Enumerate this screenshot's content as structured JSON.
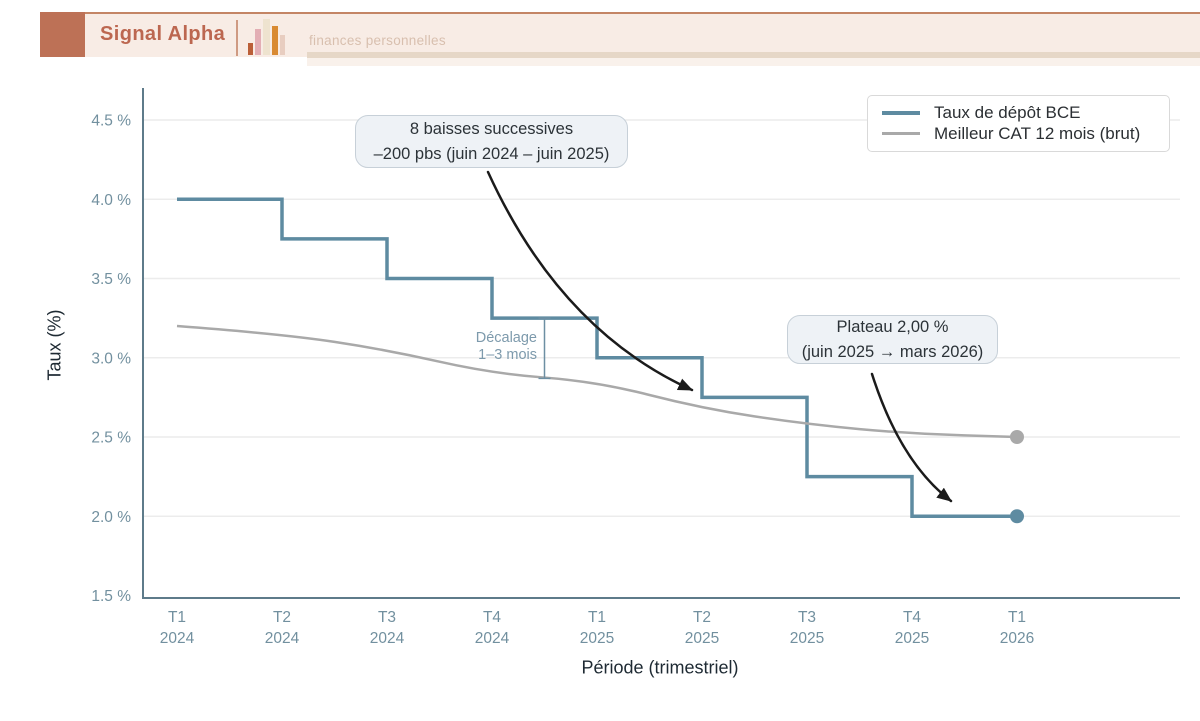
{
  "header": {
    "brand": "Signal Alpha",
    "subtitle": "finances personnelles"
  },
  "colors": {
    "accent_terracotta": "#bc6750",
    "banner_bg": "#f8ece5",
    "line_bce": "#5e8ba1",
    "line_cat": "#a9a9a9",
    "gridline": "#ececec",
    "axis": "#5e7b8a",
    "tick_label": "#72909f",
    "annotation_bg": "#eef2f6",
    "annotation_border": "#c7d0d8",
    "arrow": "#1b1b1b",
    "lag": "#6d8fa3"
  },
  "annotations": {
    "cuts": {
      "line1": "8 baisses successives",
      "line2": "–200 pbs (juin 2024 – juin 2025)"
    },
    "plateau": {
      "line1": "Plateau 2,00 %",
      "line2": "(juin 2025 → mars 2026)"
    },
    "lag": {
      "line1": "Décalage",
      "line2": "1–3 mois",
      "bracket": {
        "x_index": 3.5,
        "value_from": 3.25,
        "value_to": 2.87
      }
    }
  },
  "chart_data": {
    "type": "line",
    "xlabel": "Période (trimestriel)",
    "ylabel": "Taux (%)",
    "x_tick_labels": [
      [
        "T1",
        "2024"
      ],
      [
        "T2",
        "2024"
      ],
      [
        "T3",
        "2024"
      ],
      [
        "T4",
        "2024"
      ],
      [
        "T1",
        "2025"
      ],
      [
        "T2",
        "2025"
      ],
      [
        "T3",
        "2025"
      ],
      [
        "T4",
        "2025"
      ],
      [
        "T1",
        "2026"
      ]
    ],
    "y_ticks": [
      {
        "label": "4.5 %",
        "value": 4.5,
        "gridline": true
      },
      {
        "label": "4.0 %",
        "value": 4.0,
        "gridline": true
      },
      {
        "label": "3.5 %",
        "value": 3.5,
        "gridline": true
      },
      {
        "label": "3.0 %",
        "value": 3.0,
        "gridline": true
      },
      {
        "label": "2.5 %",
        "value": 2.5,
        "gridline": true
      },
      {
        "label": "2.0 %",
        "value": 2.0,
        "gridline": true
      },
      {
        "label": "1.5 %",
        "value": 1.5,
        "gridline": false
      }
    ],
    "ylim": [
      1.5,
      4.5
    ],
    "grid": true,
    "legend_position": "top-right",
    "series": [
      {
        "name": "Taux de dépôt BCE",
        "shape": "step",
        "color": "#5e8ba1",
        "stroke_width": 3.5,
        "end_dot": true,
        "values": [
          4.0,
          3.75,
          3.5,
          3.25,
          3.0,
          2.75,
          2.25,
          2.0,
          2.0
        ]
      },
      {
        "name": "Meilleur CAT 12 mois (brut)",
        "shape": "smooth",
        "color": "#a9a9a9",
        "stroke_width": 2.5,
        "end_dot": true,
        "values": [
          3.2,
          3.15,
          3.05,
          2.9,
          2.85,
          2.68,
          2.58,
          2.52,
          2.5
        ]
      }
    ]
  }
}
